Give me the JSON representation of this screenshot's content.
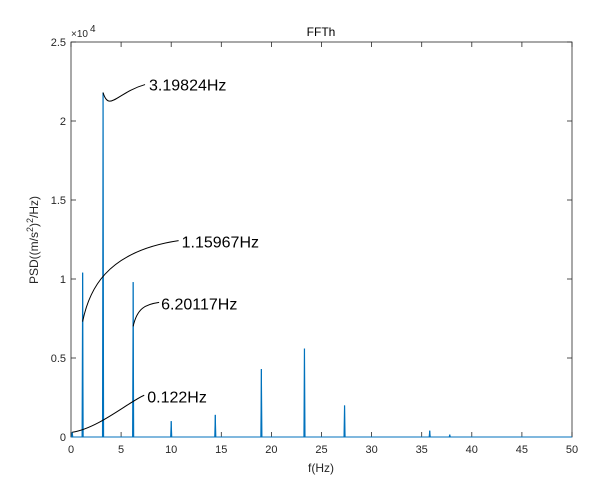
{
  "chart_data": {
    "type": "line",
    "title": "FFTh",
    "xlabel": "f(Hz)",
    "ylabel_parts": {
      "main": "PSD((m/s",
      "sup1": "2",
      "mid": ")",
      "sup2": "2",
      "end": "/Hz)"
    },
    "exponent_label": {
      "base": "×10",
      "power": "4"
    },
    "xlim": [
      0,
      50
    ],
    "ylim": [
      0,
      25000
    ],
    "x_ticks": [
      0,
      5,
      10,
      15,
      20,
      25,
      30,
      35,
      40,
      45,
      50
    ],
    "x_tick_labels": [
      "0",
      "5",
      "10",
      "15",
      "20",
      "25",
      "30",
      "35",
      "40",
      "45",
      "50"
    ],
    "y_ticks": [
      0,
      5000,
      10000,
      15000,
      20000,
      25000
    ],
    "y_tick_labels": [
      "0",
      "0.5",
      "1",
      "1.5",
      "2",
      "2.5"
    ],
    "grid": false,
    "series": [
      {
        "color": "#0072BD",
        "peaks": [
          {
            "x": 0.122,
            "y": 300
          },
          {
            "x": 1.15967,
            "y": 10400
          },
          {
            "x": 3.19824,
            "y": 21800
          },
          {
            "x": 6.20117,
            "y": 9800
          },
          {
            "x": 10.0,
            "y": 1000
          },
          {
            "x": 14.4,
            "y": 1400
          },
          {
            "x": 19.0,
            "y": 4300
          },
          {
            "x": 23.3,
            "y": 5600
          },
          {
            "x": 27.3,
            "y": 2000
          },
          {
            "x": 35.8,
            "y": 400
          },
          {
            "x": 37.8,
            "y": 150
          }
        ]
      }
    ],
    "annotations": [
      {
        "text": "3.19824Hz",
        "target_x": 3.19824,
        "target_y": 21800
      },
      {
        "text": "1.15967Hz",
        "target_x": 1.15967,
        "target_y": 7300
      },
      {
        "text": "6.20117Hz",
        "target_x": 6.20117,
        "target_y": 7000
      },
      {
        "text": "0.122Hz",
        "target_x": 0.122,
        "target_y": 300
      }
    ]
  }
}
